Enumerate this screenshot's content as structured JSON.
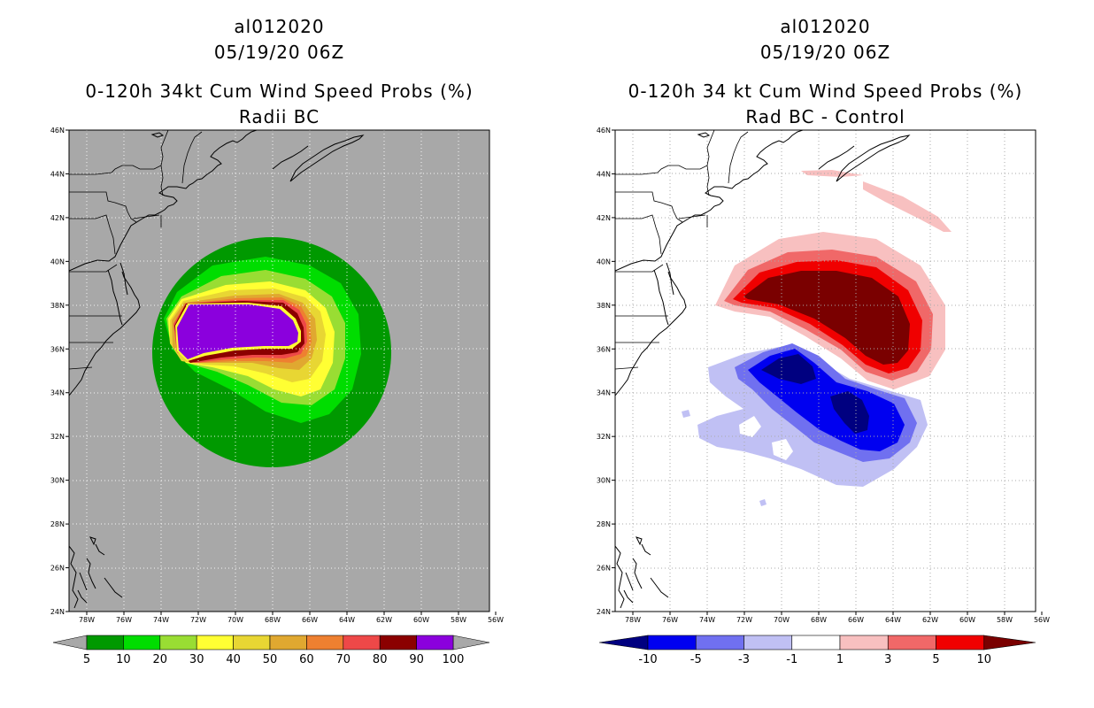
{
  "left_panel": {
    "storm_id": "al012020",
    "datetime": "05/19/20 06Z",
    "title": "0-120h 34kt Cum Wind Speed Probs (%)",
    "subtitle": "Radii BC",
    "lat_labels": [
      "46N",
      "44N",
      "42N",
      "40N",
      "38N",
      "36N",
      "34N",
      "32N",
      "30N",
      "28N",
      "26N",
      "24N"
    ],
    "lon_labels": [
      "78W",
      "76W",
      "74W",
      "72W",
      "70W",
      "68W",
      "66W",
      "64W",
      "62W",
      "60W",
      "58W",
      "56W"
    ],
    "colorbar_labels": [
      "5",
      "10",
      "20",
      "30",
      "40",
      "50",
      "60",
      "70",
      "80",
      "90",
      "100"
    ],
    "colorbar_colors": [
      "#009900",
      "#00dd00",
      "#99dd33",
      "#ffff33",
      "#e8d633",
      "#e0a830",
      "#ee8030",
      "#ee4848",
      "#8b0000",
      "#8b00dd"
    ],
    "background_color": "#a8a8a8"
  },
  "right_panel": {
    "storm_id": "al012020",
    "datetime": "05/19/20 06Z",
    "title": "0-120h 34 kt Cum Wind Speed Probs (%)",
    "subtitle": "Rad BC - Control",
    "lat_labels": [
      "46N",
      "44N",
      "42N",
      "40N",
      "38N",
      "36N",
      "34N",
      "32N",
      "30N",
      "28N",
      "26N",
      "24N"
    ],
    "lon_labels": [
      "78W",
      "76W",
      "74W",
      "72W",
      "70W",
      "68W",
      "66W",
      "64W",
      "62W",
      "60W",
      "58W",
      "56W"
    ],
    "colorbar_labels": [
      "-10",
      "-5",
      "-3",
      "-1",
      "1",
      "3",
      "5",
      "10"
    ],
    "colorbar_colors": [
      "#000080",
      "#0000f0",
      "#7070f0",
      "#c0c0f4",
      "#ffffff",
      "#f8c0c0",
      "#f06868",
      "#f00000",
      "#7a0000"
    ],
    "background_color": "#ffffff"
  }
}
